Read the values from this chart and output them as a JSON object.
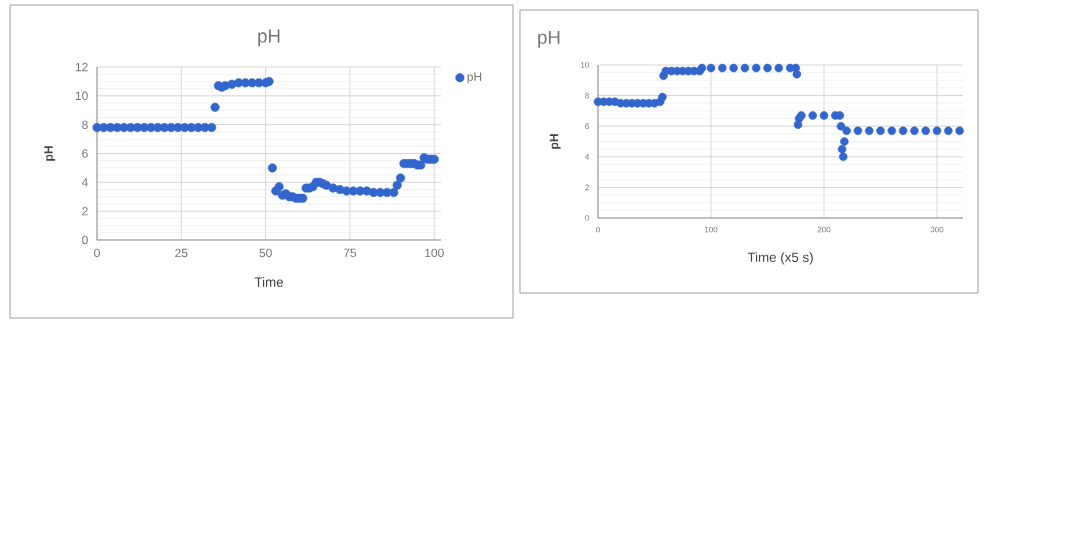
{
  "chart_data": [
    {
      "type": "scatter",
      "title": "pH",
      "xlabel": "Time",
      "ylabel": "pH",
      "marker": "circle",
      "grid": true,
      "legend": "top right",
      "x": [
        0,
        2,
        4,
        6,
        8,
        10,
        12,
        14,
        16,
        18,
        20,
        22,
        24,
        26,
        28,
        30,
        32,
        34,
        35,
        36,
        37,
        38,
        40,
        42,
        44,
        46,
        48,
        50,
        51,
        52,
        53,
        54,
        55,
        56,
        57,
        58,
        59,
        60,
        61,
        62,
        63,
        64,
        65,
        66,
        67,
        68,
        70,
        72,
        74,
        76,
        78,
        80,
        82,
        84,
        86,
        88,
        89,
        90,
        91,
        92,
        93,
        94,
        95,
        96,
        97,
        98,
        99,
        100
      ],
      "series": [
        {
          "name": "pH",
          "color": "#3366cc",
          "values": [
            7.8,
            7.8,
            7.8,
            7.8,
            7.8,
            7.8,
            7.8,
            7.8,
            7.8,
            7.8,
            7.8,
            7.8,
            7.8,
            7.8,
            7.8,
            7.8,
            7.8,
            7.8,
            9.2,
            10.7,
            10.6,
            10.7,
            10.8,
            10.9,
            10.9,
            10.9,
            10.9,
            10.9,
            11.0,
            5.0,
            3.4,
            3.7,
            3.1,
            3.2,
            3.0,
            3.0,
            2.9,
            2.9,
            2.9,
            3.6,
            3.6,
            3.7,
            4.0,
            4.0,
            3.9,
            3.8,
            3.6,
            3.5,
            3.4,
            3.4,
            3.4,
            3.4,
            3.3,
            3.3,
            3.3,
            3.3,
            3.8,
            4.3,
            5.3,
            5.3,
            5.3,
            5.3,
            5.2,
            5.2,
            5.7,
            5.6,
            5.6,
            5.6
          ]
        }
      ],
      "xlim": [
        0,
        102
      ],
      "ylim": [
        0,
        12
      ],
      "xticks": [
        0,
        25,
        50,
        75,
        100
      ],
      "yticks": [
        0,
        2,
        4,
        6,
        8,
        10,
        12
      ]
    },
    {
      "type": "scatter",
      "title": "pH",
      "xlabel": "Time (x5 s)",
      "ylabel": "pH",
      "marker": "circle",
      "grid": true,
      "x": [
        0,
        5,
        10,
        15,
        20,
        25,
        30,
        35,
        40,
        45,
        50,
        55,
        57,
        58,
        60,
        65,
        70,
        75,
        80,
        85,
        90,
        92,
        100,
        110,
        120,
        130,
        140,
        150,
        160,
        170,
        175,
        176,
        177,
        178,
        180,
        190,
        200,
        210,
        214,
        215,
        216,
        217,
        218,
        220,
        230,
        240,
        250,
        260,
        270,
        280,
        290,
        300,
        310,
        320
      ],
      "series": [
        {
          "color": "#3366cc",
          "values": [
            7.6,
            7.6,
            7.6,
            7.6,
            7.5,
            7.5,
            7.5,
            7.5,
            7.5,
            7.5,
            7.5,
            7.6,
            7.9,
            9.3,
            9.6,
            9.6,
            9.6,
            9.6,
            9.6,
            9.6,
            9.6,
            9.8,
            9.8,
            9.8,
            9.8,
            9.8,
            9.8,
            9.8,
            9.8,
            9.8,
            9.8,
            9.4,
            6.1,
            6.5,
            6.7,
            6.7,
            6.7,
            6.7,
            6.7,
            6.0,
            4.5,
            4.0,
            5.0,
            5.7,
            5.7,
            5.7,
            5.7,
            5.7,
            5.7,
            5.7,
            5.7,
            5.7,
            5.7,
            5.7
          ]
        }
      ],
      "xlim": [
        0,
        323
      ],
      "ylim": [
        0,
        10
      ],
      "xticks": [
        0,
        100,
        200,
        300
      ],
      "yticks": [
        0,
        2,
        4,
        6,
        8,
        10
      ]
    }
  ]
}
